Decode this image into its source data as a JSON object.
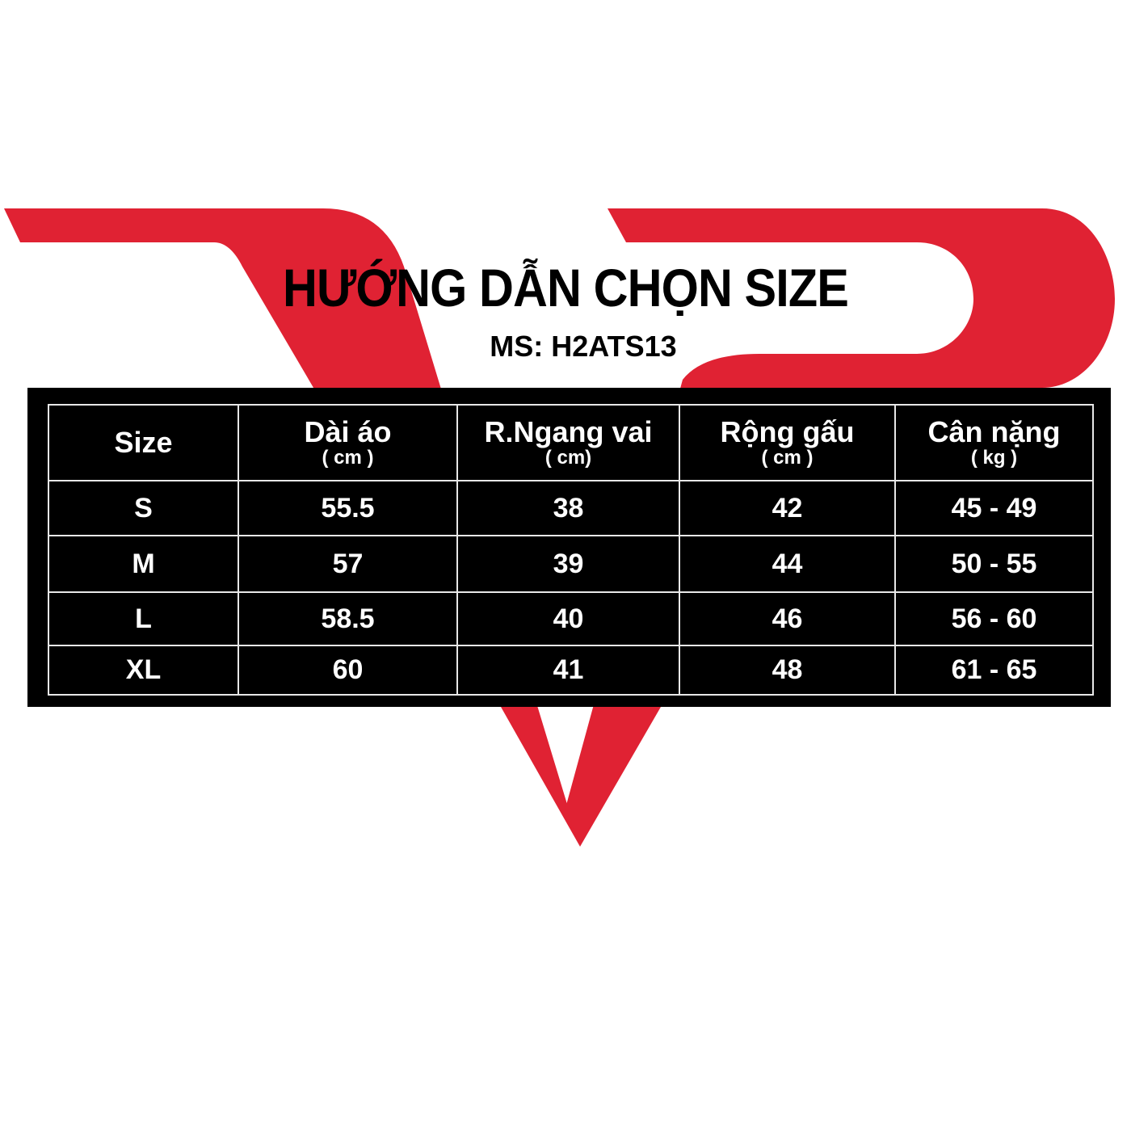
{
  "title": "HƯỚNG DẪN CHỌN SIZE",
  "code": "MS: H2ATS13",
  "colors": {
    "brand_red": "#e02233",
    "table_bg": "#000000"
  },
  "table": {
    "headers": [
      {
        "label": "Size",
        "unit": ""
      },
      {
        "label": "Dài áo",
        "unit": "( cm )"
      },
      {
        "label": "R.Ngang vai",
        "unit": "( cm)"
      },
      {
        "label": "Rộng gấu",
        "unit": "( cm )"
      },
      {
        "label": "Cân nặng",
        "unit": "( kg )"
      }
    ],
    "rows": [
      [
        "S",
        "55.5",
        "38",
        "42",
        "45 - 49"
      ],
      [
        "M",
        "57",
        "39",
        "44",
        "50 - 55"
      ],
      [
        "L",
        "58.5",
        "40",
        "46",
        "56 - 60"
      ],
      [
        "XL",
        "60",
        "41",
        "48",
        "61 - 65"
      ]
    ]
  }
}
